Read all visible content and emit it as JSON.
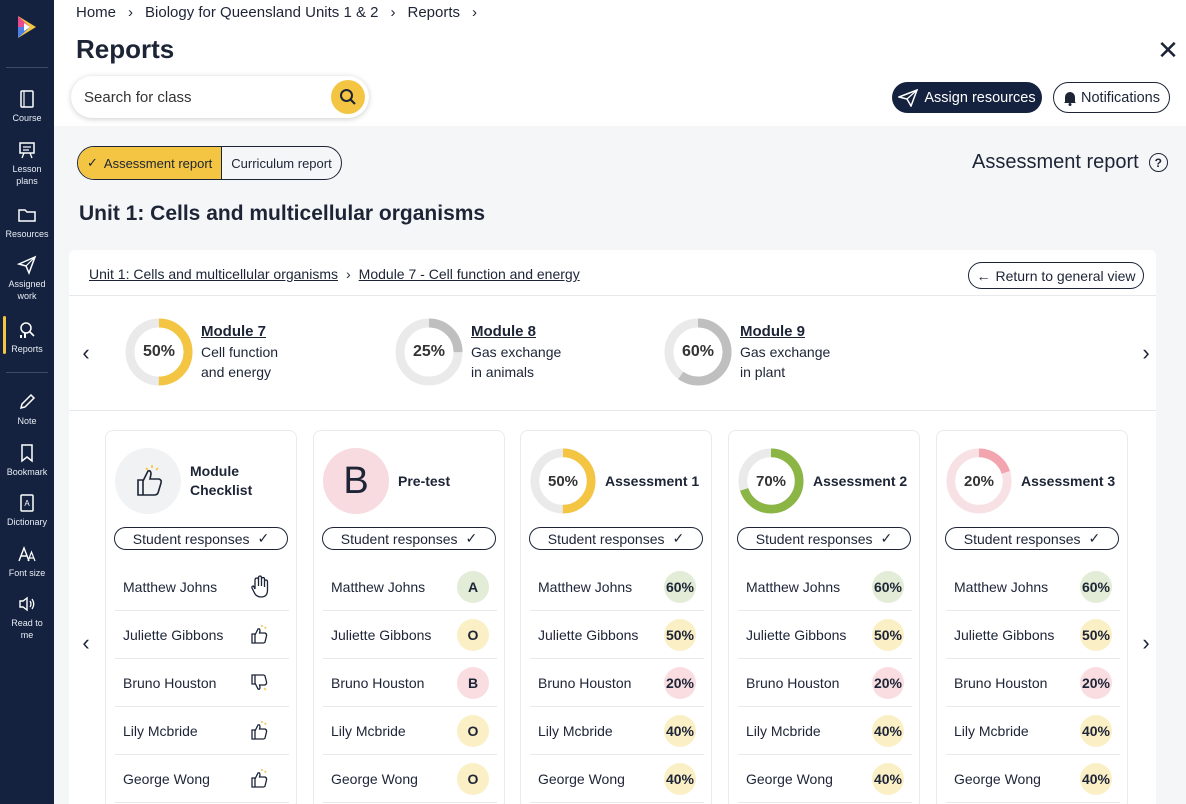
{
  "sidebar": {
    "items": [
      {
        "label": "Course",
        "icon": "book-icon"
      },
      {
        "label": "Lesson plans",
        "icon": "presentation-icon"
      },
      {
        "label": "Resources",
        "icon": "folder-icon"
      },
      {
        "label": "Assigned work",
        "icon": "paper-plane-icon"
      },
      {
        "label": "Reports",
        "icon": "reports-icon"
      },
      {
        "label": "Note",
        "icon": "pencil-icon"
      },
      {
        "label": "Bookmark",
        "icon": "bookmark-icon"
      },
      {
        "label": "Dictionary",
        "icon": "dictionary-icon"
      },
      {
        "label": "Font size",
        "icon": "font-size-icon"
      },
      {
        "label": "Read to me",
        "icon": "speaker-icon"
      }
    ]
  },
  "header": {
    "breadcrumb": [
      "Home",
      "Biology for Queensland Units 1 & 2",
      "Reports"
    ],
    "title": "Reports",
    "search_placeholder": "Search for class",
    "assign_label": "Assign resources",
    "notifications_label": "Notifications"
  },
  "main": {
    "toggle": {
      "active": "Assessment report",
      "inactive": "Curriculum report"
    },
    "report_heading": "Assessment report",
    "unit_title": "Unit 1: Cells and multicellular organisms",
    "panel_breadcrumb": [
      "Unit 1: Cells and multicellular organisms",
      "Module 7 - Cell function and energy"
    ],
    "return_label": "Return to general view",
    "modules": [
      {
        "pct_text": "50%",
        "pct": 50,
        "color": "#f4c542",
        "title": "Module 7",
        "line1": "Cell function",
        "line2": "and energy",
        "bold": true
      },
      {
        "pct_text": "25%",
        "pct": 25,
        "color": "#bfbfbf",
        "title": "Module 8",
        "line1": "Gas exchange",
        "line2": "in animals",
        "bold": false
      },
      {
        "pct_text": "60%",
        "pct": 60,
        "color": "#bfbfbf",
        "title": "Module 9",
        "line1": "Gas exchange",
        "line2": "in plant",
        "bold": false
      }
    ],
    "student_responses_label": "Student responses",
    "cards": [
      {
        "title1": "Module",
        "title2": "Checklist",
        "kind": "checklist"
      },
      {
        "title1": "Pre-test",
        "title2": "",
        "kind": "letter",
        "letter": "B"
      },
      {
        "title1": "Assessment 1",
        "title2": "",
        "kind": "donut",
        "pct_text": "50%",
        "pct": 50,
        "color": "#f4c542"
      },
      {
        "title1": "Assessment 2",
        "title2": "",
        "kind": "donut",
        "pct_text": "70%",
        "pct": 70,
        "color": "#8bb545"
      },
      {
        "title1": "Assessment 3",
        "title2": "",
        "kind": "donut",
        "pct_text": "20%",
        "pct": 20,
        "color": "#f2a5ae"
      }
    ],
    "students": [
      "Matthew Johns",
      "Juliette Gibbons",
      "Bruno Houston",
      "Lily Mcbride",
      "George Wong"
    ],
    "checklist_icons": [
      "raised-hand-icon",
      "thumbs-up-icon",
      "thumbs-down-icon",
      "thumbs-up-icon",
      "thumbs-up-icon"
    ],
    "pretest_grades": [
      "A",
      "O",
      "B",
      "O",
      "O"
    ],
    "assessment_scores": [
      "60%",
      "50%",
      "20%",
      "40%",
      "40%"
    ]
  }
}
